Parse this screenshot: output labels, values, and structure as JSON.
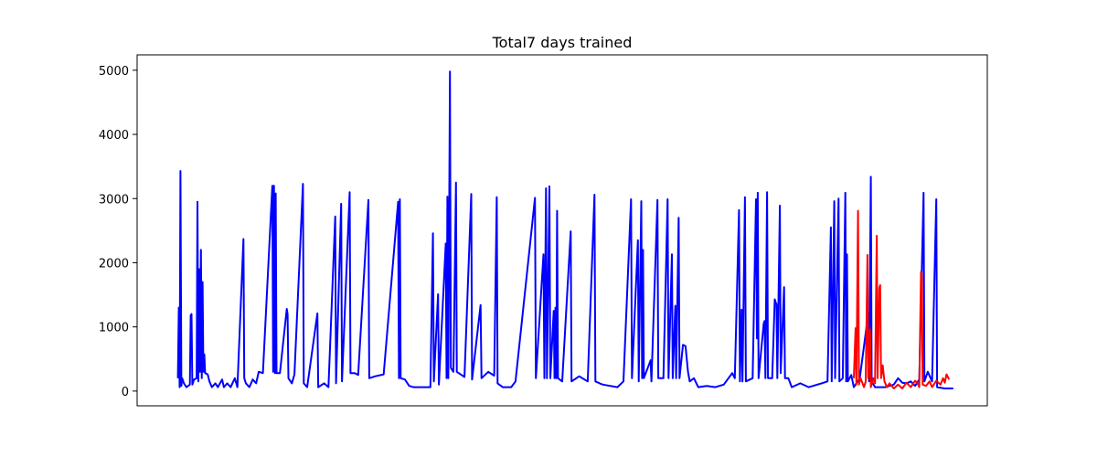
{
  "chart_data": {
    "type": "line",
    "title": "Total7 days trained",
    "xlabel": "",
    "ylabel": "",
    "xlim": [
      0,
      1000
    ],
    "ylim": [
      -230,
      5240
    ],
    "yticks": [
      0,
      1000,
      2000,
      3000,
      4000,
      5000
    ],
    "ytick_labels": [
      "0",
      "1000",
      "2000",
      "3000",
      "4000",
      "5000"
    ],
    "grid": false,
    "series": [
      {
        "color": "#0000ff",
        "points": [
          [
            48,
            200
          ],
          [
            49,
            1300
          ],
          [
            50,
            60
          ],
          [
            51,
            3430
          ],
          [
            52,
            80
          ],
          [
            53,
            200
          ],
          [
            55,
            120
          ],
          [
            58,
            60
          ],
          [
            62,
            100
          ],
          [
            63,
            1180
          ],
          [
            64,
            1200
          ],
          [
            65,
            100
          ],
          [
            67,
            180
          ],
          [
            70,
            200
          ],
          [
            71,
            2950
          ],
          [
            72,
            150
          ],
          [
            73,
            1900
          ],
          [
            74,
            300
          ],
          [
            75,
            2200
          ],
          [
            76,
            200
          ],
          [
            77,
            1700
          ],
          [
            78,
            300
          ],
          [
            79,
            570
          ],
          [
            80,
            280
          ],
          [
            83,
            260
          ],
          [
            85,
            150
          ],
          [
            88,
            60
          ],
          [
            92,
            120
          ],
          [
            95,
            60
          ],
          [
            100,
            180
          ],
          [
            102,
            60
          ],
          [
            106,
            120
          ],
          [
            110,
            60
          ],
          [
            115,
            200
          ],
          [
            118,
            60
          ],
          [
            125,
            2370
          ],
          [
            126,
            200
          ],
          [
            128,
            120
          ],
          [
            132,
            60
          ],
          [
            136,
            180
          ],
          [
            140,
            120
          ],
          [
            143,
            300
          ],
          [
            148,
            280
          ],
          [
            159,
            3200
          ],
          [
            160,
            300
          ],
          [
            161,
            3200
          ],
          [
            162,
            280
          ],
          [
            163,
            3080
          ],
          [
            164,
            280
          ],
          [
            168,
            280
          ],
          [
            176,
            1280
          ],
          [
            177,
            1200
          ],
          [
            178,
            200
          ],
          [
            182,
            120
          ],
          [
            185,
            260
          ],
          [
            195,
            3230
          ],
          [
            196,
            120
          ],
          [
            200,
            60
          ],
          [
            212,
            1210
          ],
          [
            213,
            60
          ],
          [
            220,
            120
          ],
          [
            225,
            60
          ],
          [
            233,
            2720
          ],
          [
            234,
            120
          ],
          [
            240,
            2920
          ],
          [
            241,
            150
          ],
          [
            250,
            3100
          ],
          [
            251,
            280
          ],
          [
            256,
            280
          ],
          [
            260,
            250
          ],
          [
            272,
            2980
          ],
          [
            273,
            200
          ],
          [
            280,
            230
          ],
          [
            290,
            260
          ],
          [
            307,
            2950
          ],
          [
            308,
            200
          ],
          [
            309,
            2990
          ],
          [
            310,
            200
          ],
          [
            315,
            180
          ],
          [
            320,
            80
          ],
          [
            325,
            60
          ],
          [
            345,
            60
          ],
          [
            348,
            2460
          ],
          [
            349,
            150
          ],
          [
            354,
            1510
          ],
          [
            355,
            100
          ],
          [
            363,
            2300
          ],
          [
            364,
            200
          ],
          [
            365,
            3030
          ],
          [
            366,
            200
          ],
          [
            368,
            4980
          ],
          [
            369,
            360
          ],
          [
            372,
            300
          ],
          [
            374,
            2170
          ],
          [
            375,
            3250
          ],
          [
            376,
            300
          ],
          [
            385,
            220
          ],
          [
            393,
            3070
          ],
          [
            394,
            180
          ],
          [
            404,
            1340
          ],
          [
            405,
            200
          ],
          [
            413,
            300
          ],
          [
            420,
            240
          ],
          [
            423,
            3020
          ],
          [
            424,
            120
          ],
          [
            430,
            60
          ],
          [
            440,
            60
          ],
          [
            445,
            150
          ],
          [
            468,
            3010
          ],
          [
            469,
            200
          ],
          [
            478,
            2130
          ],
          [
            479,
            200
          ],
          [
            481,
            3160
          ],
          [
            482,
            200
          ],
          [
            485,
            3190
          ],
          [
            486,
            200
          ],
          [
            490,
            1250
          ],
          [
            491,
            200
          ],
          [
            492,
            1300
          ],
          [
            493,
            200
          ],
          [
            494,
            2810
          ],
          [
            495,
            200
          ],
          [
            500,
            150
          ],
          [
            510,
            2490
          ],
          [
            511,
            150
          ],
          [
            520,
            230
          ],
          [
            530,
            150
          ],
          [
            538,
            3060
          ],
          [
            539,
            150
          ],
          [
            544,
            120
          ],
          [
            548,
            100
          ],
          [
            565,
            60
          ],
          [
            572,
            150
          ],
          [
            581,
            2990
          ],
          [
            582,
            200
          ],
          [
            589,
            2350
          ],
          [
            590,
            150
          ],
          [
            593,
            2960
          ],
          [
            594,
            200
          ],
          [
            595,
            2200
          ],
          [
            596,
            200
          ],
          [
            604,
            480
          ],
          [
            605,
            150
          ],
          [
            612,
            2980
          ],
          [
            613,
            200
          ],
          [
            619,
            200
          ],
          [
            624,
            2990
          ],
          [
            625,
            200
          ],
          [
            629,
            2130
          ],
          [
            630,
            200
          ],
          [
            633,
            1330
          ],
          [
            634,
            200
          ],
          [
            637,
            2700
          ],
          [
            638,
            200
          ],
          [
            642,
            720
          ],
          [
            645,
            700
          ],
          [
            648,
            300
          ],
          [
            650,
            150
          ],
          [
            655,
            200
          ],
          [
            660,
            60
          ],
          [
            670,
            80
          ],
          [
            680,
            60
          ],
          [
            690,
            100
          ],
          [
            700,
            280
          ],
          [
            703,
            200
          ],
          [
            708,
            2820
          ],
          [
            709,
            150
          ],
          [
            711,
            1270
          ],
          [
            712,
            150
          ],
          [
            715,
            3020
          ],
          [
            716,
            150
          ],
          [
            724,
            200
          ],
          [
            728,
            2990
          ],
          [
            729,
            820
          ],
          [
            730,
            3090
          ],
          [
            731,
            200
          ],
          [
            737,
            1050
          ],
          [
            738,
            1090
          ],
          [
            739,
            200
          ],
          [
            741,
            3100
          ],
          [
            742,
            200
          ],
          [
            747,
            200
          ],
          [
            750,
            1430
          ],
          [
            751,
            1390
          ],
          [
            752,
            1350
          ],
          [
            753,
            200
          ],
          [
            756,
            2890
          ],
          [
            757,
            280
          ],
          [
            761,
            1620
          ],
          [
            762,
            200
          ],
          [
            766,
            200
          ],
          [
            770,
            60
          ],
          [
            780,
            120
          ],
          [
            790,
            60
          ],
          [
            805,
            120
          ],
          [
            812,
            150
          ],
          [
            816,
            2550
          ],
          [
            817,
            150
          ],
          [
            820,
            2960
          ],
          [
            821,
            200
          ],
          [
            825,
            3000
          ],
          [
            826,
            150
          ],
          [
            830,
            200
          ],
          [
            833,
            3090
          ],
          [
            834,
            150
          ],
          [
            835,
            2130
          ],
          [
            836,
            150
          ],
          [
            840,
            250
          ],
          [
            843,
            60
          ],
          [
            850,
            200
          ],
          [
            860,
            1210
          ],
          [
            861,
            150
          ],
          [
            863,
            3340
          ],
          [
            864,
            150
          ],
          [
            868,
            60
          ],
          [
            880,
            60
          ],
          [
            890,
            100
          ],
          [
            895,
            200
          ],
          [
            900,
            130
          ],
          [
            905,
            120
          ],
          [
            910,
            150
          ],
          [
            915,
            80
          ],
          [
            920,
            180
          ],
          [
            925,
            3090
          ],
          [
            926,
            150
          ],
          [
            930,
            300
          ],
          [
            935,
            150
          ],
          [
            940,
            2990
          ],
          [
            941,
            60
          ],
          [
            950,
            40
          ],
          [
            960,
            40
          ]
        ]
      },
      {
        "color": "#ff0000",
        "points": [
          [
            843,
            200
          ],
          [
            845,
            980
          ],
          [
            846,
            100
          ],
          [
            848,
            2810
          ],
          [
            849,
            100
          ],
          [
            851,
            200
          ],
          [
            855,
            60
          ],
          [
            857,
            150
          ],
          [
            859,
            2120
          ],
          [
            860,
            200
          ],
          [
            862,
            960
          ],
          [
            863,
            60
          ],
          [
            866,
            200
          ],
          [
            868,
            120
          ],
          [
            870,
            2420
          ],
          [
            871,
            200
          ],
          [
            873,
            1610
          ],
          [
            874,
            1650
          ],
          [
            875,
            200
          ],
          [
            877,
            400
          ],
          [
            879,
            150
          ],
          [
            882,
            60
          ],
          [
            885,
            120
          ],
          [
            890,
            40
          ],
          [
            895,
            100
          ],
          [
            900,
            40
          ],
          [
            905,
            130
          ],
          [
            910,
            60
          ],
          [
            915,
            160
          ],
          [
            918,
            120
          ],
          [
            920,
            60
          ],
          [
            922,
            1860
          ],
          [
            923,
            1800
          ],
          [
            924,
            100
          ],
          [
            928,
            80
          ],
          [
            932,
            150
          ],
          [
            935,
            60
          ],
          [
            940,
            160
          ],
          [
            945,
            100
          ],
          [
            948,
            200
          ],
          [
            950,
            130
          ],
          [
            952,
            260
          ],
          [
            955,
            180
          ]
        ]
      }
    ]
  }
}
